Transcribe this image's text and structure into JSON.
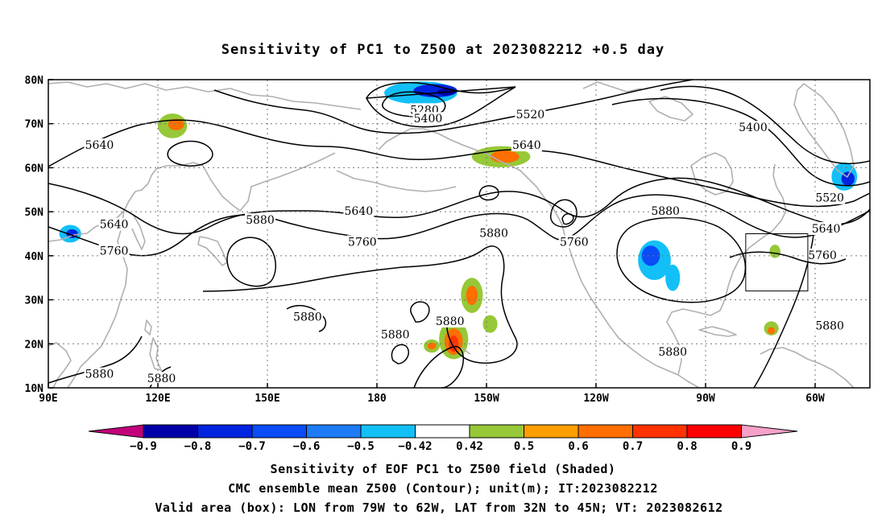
{
  "chart_data": {
    "type": "heatmap",
    "title": "Sensitivity of PC1 to Z500 at 2023082212 +0.5 day",
    "x_ticks": [
      "90E",
      "120E",
      "150E",
      "180",
      "150W",
      "120W",
      "90W",
      "60W"
    ],
    "y_ticks": [
      "10N",
      "20N",
      "30N",
      "40N",
      "50N",
      "60N",
      "70N",
      "80N"
    ],
    "xlim": [
      90,
      315
    ],
    "ylim": [
      10,
      80
    ],
    "grid": true,
    "colorbar": {
      "ticks": [
        "-0.9",
        "-0.8",
        "-0.7",
        "-0.6",
        "-0.5",
        "-0.42",
        "0.42",
        "0.5",
        "0.6",
        "0.7",
        "0.8",
        "0.9"
      ],
      "colors": [
        "#c2007a",
        "#0000a8",
        "#0024e0",
        "#0a4cf5",
        "#1c7bf5",
        "#12c0f7",
        "#ffffff",
        "#96c837",
        "#ffa000",
        "#ff6e00",
        "#ff3200",
        "#ff0000",
        "#f7a0c8"
      ]
    },
    "contour_labels": [
      {
        "text": "5280",
        "lon": 193,
        "lat": 73
      },
      {
        "text": "5400",
        "lon": 194,
        "lat": 71
      },
      {
        "text": "5520",
        "lon": 222,
        "lat": 72
      },
      {
        "text": "5400",
        "lon": 283,
        "lat": 69
      },
      {
        "text": "5640",
        "lon": 104,
        "lat": 65
      },
      {
        "text": "5640",
        "lon": 221,
        "lat": 65
      },
      {
        "text": "5520",
        "lon": 304,
        "lat": 53
      },
      {
        "text": "5640",
        "lon": 108,
        "lat": 47
      },
      {
        "text": "5880",
        "lon": 148,
        "lat": 48
      },
      {
        "text": "5640",
        "lon": 175,
        "lat": 50
      },
      {
        "text": "5880",
        "lon": 259,
        "lat": 50
      },
      {
        "text": "5640",
        "lon": 303,
        "lat": 46
      },
      {
        "text": "5760",
        "lon": 176,
        "lat": 43
      },
      {
        "text": "5880",
        "lon": 212,
        "lat": 45
      },
      {
        "text": "5760",
        "lon": 234,
        "lat": 43
      },
      {
        "text": "5760",
        "lon": 108,
        "lat": 41
      },
      {
        "text": "5760",
        "lon": 302,
        "lat": 40
      },
      {
        "text": "5880",
        "lon": 161,
        "lat": 26
      },
      {
        "text": "5880",
        "lon": 200,
        "lat": 25
      },
      {
        "text": "5880",
        "lon": 185,
        "lat": 22
      },
      {
        "text": "5880",
        "lon": 304,
        "lat": 24
      },
      {
        "text": "5880",
        "lon": 261,
        "lat": 18
      },
      {
        "text": "5880",
        "lon": 104,
        "lat": 13
      },
      {
        "text": "5880",
        "lon": 121,
        "lat": 12
      }
    ],
    "blobs": [
      {
        "lon": 192,
        "lat": 77,
        "rx": 10,
        "ry": 2.6,
        "level": -0.5
      },
      {
        "lon": 196,
        "lat": 77.5,
        "rx": 6,
        "ry": 1.5,
        "level": -0.7
      },
      {
        "lon": 199,
        "lat": 77.2,
        "rx": 2.5,
        "ry": 0.8,
        "level": -0.8
      },
      {
        "lon": 124,
        "lat": 69.5,
        "rx": 4,
        "ry": 2.8,
        "level": 0.42
      },
      {
        "lon": 125,
        "lat": 69.8,
        "rx": 2.2,
        "ry": 1.3,
        "level": 0.6
      },
      {
        "lon": 214,
        "lat": 62.5,
        "rx": 8,
        "ry": 2.4,
        "level": 0.42
      },
      {
        "lon": 215,
        "lat": 62.5,
        "rx": 4,
        "ry": 1.4,
        "level": 0.6
      },
      {
        "lon": 96,
        "lat": 45,
        "rx": 3,
        "ry": 2,
        "level": -0.5
      },
      {
        "lon": 96.5,
        "lat": 45,
        "rx": 1.6,
        "ry": 1,
        "level": -0.7
      },
      {
        "lon": 256,
        "lat": 39,
        "rx": 4.5,
        "ry": 4.5,
        "level": -0.5
      },
      {
        "lon": 255,
        "lat": 40,
        "rx": 2.5,
        "ry": 2.3,
        "level": -0.6
      },
      {
        "lon": 261,
        "lat": 35,
        "rx": 2,
        "ry": 3,
        "level": -0.5
      },
      {
        "lon": 308,
        "lat": 58,
        "rx": 3.5,
        "ry": 3.2,
        "level": -0.5
      },
      {
        "lon": 309,
        "lat": 57.5,
        "rx": 1.8,
        "ry": 1.6,
        "level": -0.7
      },
      {
        "lon": 206,
        "lat": 31,
        "rx": 3,
        "ry": 4,
        "level": 0.42
      },
      {
        "lon": 206,
        "lat": 31,
        "rx": 1.6,
        "ry": 2.2,
        "level": 0.6
      },
      {
        "lon": 201,
        "lat": 21,
        "rx": 4,
        "ry": 4.5,
        "level": 0.42
      },
      {
        "lon": 201,
        "lat": 20.5,
        "rx": 2.5,
        "ry": 3,
        "level": 0.6
      },
      {
        "lon": 201,
        "lat": 20,
        "rx": 1.3,
        "ry": 1.8,
        "level": 0.7
      },
      {
        "lon": 195,
        "lat": 19.5,
        "rx": 2.2,
        "ry": 1.5,
        "level": 0.42
      },
      {
        "lon": 195,
        "lat": 19.5,
        "rx": 1.2,
        "ry": 0.8,
        "level": 0.6
      },
      {
        "lon": 211,
        "lat": 24.5,
        "rx": 2,
        "ry": 2,
        "level": 0.42
      },
      {
        "lon": 288,
        "lat": 23.5,
        "rx": 2,
        "ry": 1.6,
        "level": 0.42
      },
      {
        "lon": 288,
        "lat": 23,
        "rx": 1,
        "ry": 0.8,
        "level": 0.6
      },
      {
        "lon": 289,
        "lat": 41,
        "rx": 1.5,
        "ry": 1.5,
        "level": 0.42
      }
    ],
    "valid_box": {
      "lon_min": 281,
      "lon_max": 298,
      "lat_min": 32,
      "lat_max": 45
    }
  },
  "captions": [
    "Sensitivity of EOF PC1 to Z500 field (Shaded)",
    "CMC ensemble mean Z500 (Contour); unit(m); IT:2023082212",
    "Valid area (box): LON from 79W to 62W, LAT from 32N to 45N; VT: 2023082612"
  ]
}
